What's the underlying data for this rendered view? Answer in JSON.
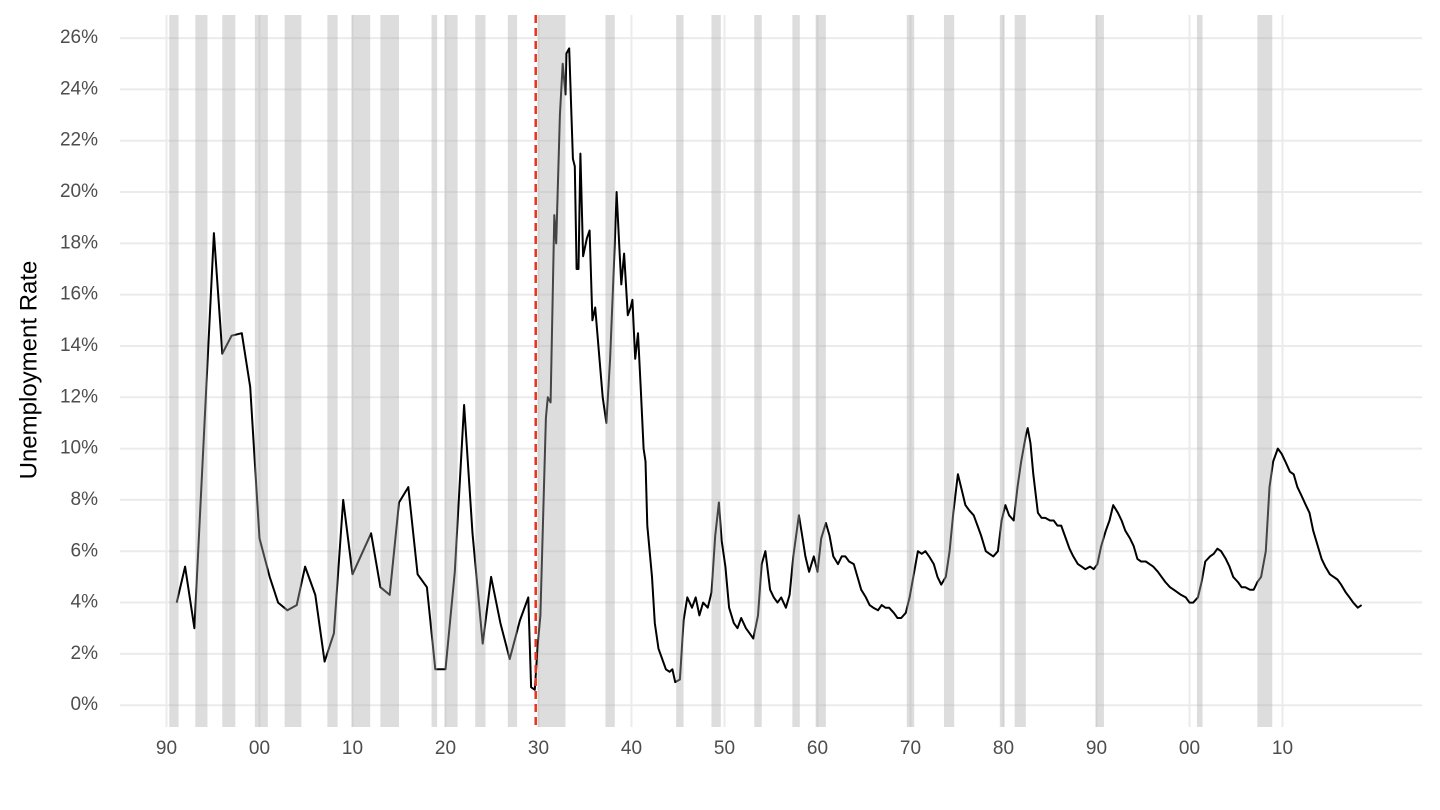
{
  "chart_data": {
    "type": "line",
    "y_label": "Unemployment Rate",
    "color": "#000000",
    "recession_color": "#aaaaaa",
    "vline": {
      "x": 1929.7,
      "color": "#e8331e"
    },
    "xlim": [
      1885,
      2025
    ],
    "ylim": [
      -0.85,
      26.9
    ],
    "grid": true,
    "xticks": [
      {
        "value": 1890,
        "label": "90"
      },
      {
        "value": 1900,
        "label": "00"
      },
      {
        "value": 1910,
        "label": "10"
      },
      {
        "value": 1920,
        "label": "20"
      },
      {
        "value": 1930,
        "label": "30"
      },
      {
        "value": 1940,
        "label": "40"
      },
      {
        "value": 1950,
        "label": "50"
      },
      {
        "value": 1960,
        "label": "60"
      },
      {
        "value": 1970,
        "label": "70"
      },
      {
        "value": 1980,
        "label": "80"
      },
      {
        "value": 1990,
        "label": "90"
      },
      {
        "value": 2000,
        "label": "00"
      },
      {
        "value": 2010,
        "label": "10"
      }
    ],
    "yticks": [
      {
        "value": 0,
        "label": "0%"
      },
      {
        "value": 2,
        "label": "2%"
      },
      {
        "value": 4,
        "label": "4%"
      },
      {
        "value": 6,
        "label": "6%"
      },
      {
        "value": 8,
        "label": "8%"
      },
      {
        "value": 10,
        "label": "10%"
      },
      {
        "value": 12,
        "label": "12%"
      },
      {
        "value": 14,
        "label": "14%"
      },
      {
        "value": 16,
        "label": "16%"
      },
      {
        "value": 18,
        "label": "18%"
      },
      {
        "value": 20,
        "label": "20%"
      },
      {
        "value": 22,
        "label": "22%"
      },
      {
        "value": 24,
        "label": "24%"
      },
      {
        "value": 26,
        "label": "26%"
      }
    ],
    "recessions": [
      [
        1890.3,
        1891.3
      ],
      [
        1893.1,
        1894.4
      ],
      [
        1896.0,
        1897.4
      ],
      [
        1899.5,
        1900.9
      ],
      [
        1902.7,
        1904.5
      ],
      [
        1907.3,
        1908.4
      ],
      [
        1909.9,
        1911.9
      ],
      [
        1913.0,
        1915.0
      ],
      [
        1918.5,
        1919.1
      ],
      [
        1919.9,
        1921.3
      ],
      [
        1923.2,
        1924.3
      ],
      [
        1926.7,
        1927.7
      ],
      [
        1929.9,
        1932.9
      ],
      [
        1937.2,
        1938.2
      ],
      [
        1944.8,
        1945.6
      ],
      [
        1948.6,
        1949.6
      ],
      [
        1953.2,
        1954.0
      ],
      [
        1957.3,
        1958.1
      ],
      [
        1959.8,
        1960.9
      ],
      [
        1969.6,
        1970.4
      ],
      [
        1973.6,
        1974.7
      ],
      [
        1979.6,
        1980.1
      ],
      [
        1981.2,
        1982.4
      ],
      [
        1989.9,
        1990.8
      ],
      [
        2000.8,
        2001.4
      ],
      [
        2007.3,
        2008.9
      ]
    ],
    "x": [
      1891.1,
      1892.0,
      1893.0,
      1895.1,
      1896.0,
      1897.0,
      1898.1,
      1899.0,
      1900.0,
      1901.1,
      1902.0,
      1903.0,
      1904.0,
      1904.9,
      1906.0,
      1907.0,
      1908.0,
      1909.0,
      1910.0,
      1912.0,
      1913.0,
      1914.0,
      1915.0,
      1916.0,
      1917.0,
      1918.0,
      1918.9,
      1920.0,
      1921.0,
      1922.0,
      1922.9,
      1924.0,
      1924.9,
      1925.9,
      1926.9,
      1928.0,
      1928.9,
      1929.2,
      1929.6,
      1929.9,
      1930.2,
      1930.8,
      1931.0,
      1931.3,
      1931.7,
      1931.9,
      1932.3,
      1932.6,
      1932.9,
      1933.0,
      1933.3,
      1933.7,
      1933.9,
      1934.1,
      1934.3,
      1934.5,
      1934.8,
      1935.2,
      1935.5,
      1935.8,
      1936.1,
      1936.6,
      1936.9,
      1937.3,
      1937.7,
      1938.2,
      1938.4,
      1938.7,
      1938.9,
      1939.2,
      1939.6,
      1939.9,
      1940.1,
      1940.4,
      1940.7,
      1941.0,
      1941.3,
      1941.5,
      1941.7,
      1942.2,
      1942.5,
      1942.9,
      1943.3,
      1943.7,
      1944.1,
      1944.4,
      1944.7,
      1945.2,
      1945.6,
      1946.0,
      1946.5,
      1946.9,
      1947.3,
      1947.7,
      1948.2,
      1948.6,
      1949.0,
      1949.4,
      1949.7,
      1950.1,
      1950.5,
      1951.0,
      1951.4,
      1951.8,
      1952.3,
      1952.7,
      1953.1,
      1953.6,
      1954.0,
      1954.4,
      1954.9,
      1955.3,
      1955.7,
      1956.1,
      1956.6,
      1957.0,
      1957.4,
      1958.0,
      1958.4,
      1958.7,
      1959.1,
      1959.6,
      1960.0,
      1960.4,
      1960.9,
      1961.3,
      1961.7,
      1962.2,
      1962.6,
      1963.0,
      1963.4,
      1963.9,
      1964.3,
      1964.7,
      1965.2,
      1965.6,
      1966.0,
      1966.5,
      1966.9,
      1967.3,
      1967.7,
      1968.2,
      1968.6,
      1969.0,
      1969.5,
      1969.9,
      1970.3,
      1970.8,
      1971.2,
      1971.6,
      1972.0,
      1972.5,
      1972.9,
      1973.3,
      1973.8,
      1974.2,
      1974.6,
      1975.1,
      1975.5,
      1975.9,
      1976.3,
      1976.8,
      1977.2,
      1977.6,
      1978.1,
      1978.5,
      1978.9,
      1979.4,
      1979.8,
      1980.2,
      1980.6,
      1981.1,
      1981.5,
      1981.9,
      1982.4,
      1982.6,
      1982.9,
      1983.2,
      1983.7,
      1984.1,
      1984.5,
      1985.0,
      1985.4,
      1985.8,
      1986.2,
      1986.7,
      1987.1,
      1987.5,
      1988.0,
      1988.4,
      1988.8,
      1989.3,
      1989.7,
      1990.1,
      1990.5,
      1991.0,
      1991.4,
      1991.8,
      1992.3,
      1992.7,
      1993.1,
      1993.6,
      1994.0,
      1994.4,
      1994.8,
      1995.3,
      1995.7,
      1996.1,
      1996.6,
      1997.0,
      1997.4,
      1997.9,
      1998.3,
      1998.7,
      1999.1,
      1999.6,
      2000.0,
      2000.4,
      2000.9,
      2001.3,
      2001.7,
      2002.2,
      2002.6,
      2003.0,
      2003.4,
      2003.9,
      2004.3,
      2004.7,
      2005.2,
      2005.6,
      2006.0,
      2006.5,
      2006.9,
      2007.3,
      2007.7,
      2008.2,
      2008.6,
      2009.0,
      2009.5,
      2009.9,
      2010.3,
      2010.8,
      2011.2,
      2011.6,
      2012.0,
      2012.5,
      2012.9,
      2013.3,
      2013.8,
      2014.2,
      2014.6,
      2015.1,
      2015.5,
      2015.9,
      2016.3,
      2016.8,
      2017.2,
      2017.6,
      2018.1,
      2018.5
    ],
    "values": [
      4.0,
      5.4,
      3.0,
      18.4,
      13.7,
      14.4,
      14.5,
      12.4,
      6.5,
      5.0,
      4.0,
      3.7,
      3.9,
      5.4,
      4.3,
      1.7,
      2.8,
      8.0,
      5.1,
      6.7,
      4.6,
      4.3,
      7.9,
      8.5,
      5.1,
      4.6,
      1.4,
      1.4,
      5.2,
      11.7,
      6.7,
      2.4,
      5.0,
      3.2,
      1.8,
      3.3,
      4.2,
      0.7,
      0.6,
      2.3,
      3.5,
      11.2,
      12.0,
      11.8,
      19.1,
      18.0,
      23.0,
      25.0,
      23.8,
      25.4,
      25.6,
      21.3,
      21.0,
      17.0,
      17.0,
      21.5,
      17.5,
      18.2,
      18.5,
      15.0,
      15.5,
      13.3,
      12.0,
      11.0,
      13.5,
      18.0,
      20.0,
      17.8,
      16.4,
      17.6,
      15.2,
      15.5,
      15.8,
      13.5,
      14.5,
      12.3,
      10.0,
      9.5,
      7.0,
      5.0,
      3.2,
      2.2,
      1.8,
      1.4,
      1.3,
      1.4,
      0.9,
      1.0,
      3.3,
      4.2,
      3.8,
      4.2,
      3.5,
      4.0,
      3.8,
      4.4,
      6.6,
      7.9,
      6.4,
      5.4,
      3.8,
      3.2,
      3.0,
      3.4,
      3.0,
      2.8,
      2.6,
      3.5,
      5.5,
      6.0,
      4.5,
      4.2,
      4.0,
      4.2,
      3.8,
      4.3,
      5.8,
      7.4,
      6.5,
      5.8,
      5.2,
      5.8,
      5.2,
      6.5,
      7.1,
      6.6,
      5.8,
      5.5,
      5.8,
      5.8,
      5.6,
      5.5,
      5.0,
      4.5,
      4.2,
      3.9,
      3.8,
      3.7,
      3.9,
      3.8,
      3.8,
      3.6,
      3.4,
      3.4,
      3.6,
      4.2,
      5.0,
      6.0,
      5.9,
      6.0,
      5.8,
      5.5,
      5.0,
      4.7,
      5.0,
      6.0,
      7.5,
      9.0,
      8.4,
      7.8,
      7.6,
      7.4,
      7.0,
      6.6,
      6.0,
      5.9,
      5.8,
      6.0,
      7.2,
      7.8,
      7.4,
      7.2,
      8.5,
      9.5,
      10.5,
      10.8,
      10.2,
      9.0,
      7.5,
      7.3,
      7.3,
      7.2,
      7.2,
      7.0,
      7.0,
      6.5,
      6.1,
      5.8,
      5.5,
      5.4,
      5.3,
      5.4,
      5.3,
      5.5,
      6.2,
      6.8,
      7.2,
      7.8,
      7.5,
      7.2,
      6.8,
      6.5,
      6.2,
      5.7,
      5.6,
      5.6,
      5.5,
      5.4,
      5.2,
      5.0,
      4.8,
      4.6,
      4.5,
      4.4,
      4.3,
      4.2,
      4.0,
      4.0,
      4.2,
      4.8,
      5.6,
      5.8,
      5.9,
      6.1,
      6.0,
      5.7,
      5.4,
      5.0,
      4.8,
      4.6,
      4.6,
      4.5,
      4.5,
      4.8,
      5.0,
      6.0,
      8.5,
      9.5,
      10.0,
      9.8,
      9.5,
      9.1,
      9.0,
      8.5,
      8.2,
      7.8,
      7.5,
      6.8,
      6.2,
      5.7,
      5.4,
      5.1,
      5.0,
      4.9,
      4.7,
      4.4,
      4.2,
      4.0,
      3.8,
      3.9
    ]
  }
}
